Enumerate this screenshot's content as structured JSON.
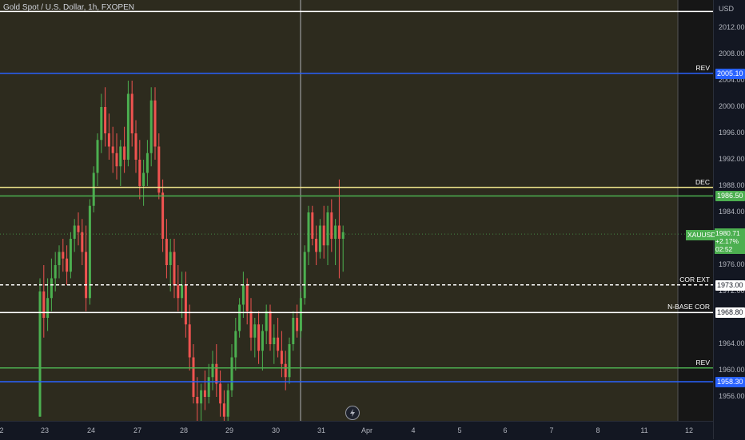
{
  "symbol_title": "Gold Spot / U.S. Dollar, 1h, FXOPEN",
  "price_axis": {
    "currency": "USD",
    "ticks": [
      "2012.00",
      "2008.00",
      "2004.00",
      "2000.00",
      "1996.00",
      "1992.00",
      "1988.00",
      "1984.00",
      "1976.00",
      "1972.00",
      "1964.00",
      "1960.00",
      "1956.00"
    ]
  },
  "time_axis": {
    "labels": [
      "2",
      "23",
      "24",
      "27",
      "28",
      "29",
      "30",
      "31",
      "Apr",
      "4",
      "5",
      "6",
      "7",
      "8",
      "11",
      "12"
    ]
  },
  "levels": [
    {
      "name": "top-line",
      "price": 2014.5,
      "color": "#ffffff",
      "tag": "",
      "box": ""
    },
    {
      "name": "rev-upper",
      "price": 2005.1,
      "color": "#2962ff",
      "tag": "REV",
      "box": "2005.10",
      "box_bg": "#2962ff",
      "box_fg": "#ffffff"
    },
    {
      "name": "dec-line",
      "price": 1987.8,
      "color": "#f0e68c",
      "tag": "DEC",
      "box": "",
      "box_bg": "",
      "box_fg": ""
    },
    {
      "name": "green-level",
      "price": 1986.5,
      "color": "#4caf50",
      "tag": "",
      "box": "1986.50",
      "box_bg": "#4caf50",
      "box_fg": "#ffffff"
    },
    {
      "name": "cor-ext",
      "price": 1973.0,
      "color": "#ffffff",
      "tag": "COR EXT",
      "box": "1973.00",
      "box_bg": "#ffffff",
      "box_fg": "#131722",
      "dashed": true
    },
    {
      "name": "n-base-cor",
      "price": 1968.8,
      "color": "#ffffff",
      "tag": "N-BASE COR",
      "box": "1968.80",
      "box_bg": "#ffffff",
      "box_fg": "#131722"
    },
    {
      "name": "rev-green",
      "price": 1960.4,
      "color": "#4caf50",
      "tag": "REV",
      "box": "",
      "box_bg": "",
      "box_fg": ""
    },
    {
      "name": "rev-lower",
      "price": 1958.3,
      "color": "#2962ff",
      "tag": "",
      "box": "1958.30",
      "box_bg": "#2962ff",
      "box_fg": "#ffffff"
    }
  ],
  "current": {
    "ticker": "XAUUSD",
    "price": "1980.71",
    "change": "+2.17%",
    "countdown": "02:52",
    "price_value": 1980.71
  },
  "colors": {
    "up": "#4caf50",
    "down": "#ef5350",
    "background": "#2d2b1e"
  },
  "candles": [
    [
      1953,
      1974,
      1953,
      1972
    ],
    [
      1972,
      1976,
      1965,
      1968
    ],
    [
      1968,
      1974,
      1966,
      1971
    ],
    [
      1971,
      1977,
      1969,
      1974
    ],
    [
      1974,
      1978,
      1972,
      1976
    ],
    [
      1976,
      1979,
      1974,
      1978
    ],
    [
      1978,
      1980,
      1975,
      1977
    ],
    [
      1977,
      1979,
      1973,
      1975
    ],
    [
      1975,
      1981,
      1974,
      1980
    ],
    [
      1980,
      1983,
      1978,
      1982
    ],
    [
      1982,
      1984,
      1979,
      1981
    ],
    [
      1981,
      1983,
      1976,
      1978
    ],
    [
      1978,
      1982,
      1969,
      1971
    ],
    [
      1971,
      1986,
      1970,
      1985
    ],
    [
      1985,
      1991,
      1984,
      1990
    ],
    [
      1990,
      1996,
      1988,
      1995
    ],
    [
      1995,
      2002,
      1993,
      2000
    ],
    [
      2000,
      2003,
      1994,
      1996
    ],
    [
      1996,
      1999,
      1992,
      1994
    ],
    [
      1994,
      1997,
      1990,
      1993
    ],
    [
      1993,
      1996,
      1989,
      1991
    ],
    [
      1991,
      1995,
      1988,
      1994
    ],
    [
      1994,
      1997,
      1990,
      1992
    ],
    [
      1992,
      2004,
      1991,
      2002
    ],
    [
      2002,
      2004,
      1994,
      1996
    ],
    [
      1996,
      1998,
      1990,
      1992
    ],
    [
      1992,
      1995,
      1986,
      1988
    ],
    [
      1988,
      1992,
      1985,
      1990
    ],
    [
      1990,
      1995,
      1988,
      1993
    ],
    [
      1993,
      2003,
      1991,
      2001
    ],
    [
      2001,
      2003,
      1992,
      1994
    ],
    [
      1994,
      1996,
      1986,
      1987
    ],
    [
      1987,
      1989,
      1978,
      1980
    ],
    [
      1980,
      1983,
      1974,
      1976
    ],
    [
      1976,
      1980,
      1972,
      1978
    ],
    [
      1978,
      1980,
      1971,
      1973
    ],
    [
      1973,
      1976,
      1969,
      1971
    ],
    [
      1971,
      1975,
      1968,
      1973
    ],
    [
      1973,
      1975,
      1965,
      1967
    ],
    [
      1967,
      1970,
      1960,
      1962
    ],
    [
      1962,
      1964,
      1955,
      1956
    ],
    [
      1956,
      1959,
      1952,
      1955
    ],
    [
      1955,
      1958,
      1951,
      1957
    ],
    [
      1957,
      1960,
      1954,
      1956
    ],
    [
      1956,
      1961,
      1955,
      1959
    ],
    [
      1959,
      1963,
      1957,
      1961
    ],
    [
      1961,
      1964,
      1956,
      1958
    ],
    [
      1958,
      1960,
      1953,
      1955
    ],
    [
      1955,
      1957,
      1950,
      1953
    ],
    [
      1953,
      1958,
      1952,
      1957
    ],
    [
      1957,
      1964,
      1956,
      1962
    ],
    [
      1962,
      1968,
      1960,
      1966
    ],
    [
      1966,
      1971,
      1965,
      1970
    ],
    [
      1970,
      1975,
      1968,
      1973
    ],
    [
      1973,
      1974,
      1967,
      1969
    ],
    [
      1969,
      1971,
      1963,
      1965
    ],
    [
      1965,
      1968,
      1962,
      1967
    ],
    [
      1967,
      1969,
      1961,
      1963
    ],
    [
      1963,
      1967,
      1960,
      1966
    ],
    [
      1966,
      1970,
      1964,
      1969
    ],
    [
      1969,
      1970,
      1963,
      1964
    ],
    [
      1964,
      1967,
      1961,
      1965
    ],
    [
      1965,
      1968,
      1962,
      1963
    ],
    [
      1963,
      1966,
      1959,
      1961
    ],
    [
      1961,
      1963,
      1957,
      1959
    ],
    [
      1959,
      1965,
      1958,
      1964
    ],
    [
      1964,
      1969,
      1963,
      1968
    ],
    [
      1968,
      1970,
      1965,
      1966
    ],
    [
      1966,
      1972,
      1965,
      1971
    ],
    [
      1971,
      1979,
      1970,
      1978
    ],
    [
      1978,
      1985,
      1976,
      1984
    ],
    [
      1984,
      1985,
      1979,
      1980
    ],
    [
      1980,
      1982,
      1976,
      1978
    ],
    [
      1978,
      1983,
      1977,
      1982
    ],
    [
      1982,
      1985,
      1977,
      1979
    ],
    [
      1979,
      1985,
      1976,
      1984
    ],
    [
      1984,
      1986,
      1978,
      1980
    ],
    [
      1980,
      1983,
      1976,
      1982
    ],
    [
      1982,
      1989,
      1974,
      1980
    ],
    [
      1980,
      1982,
      1975,
      1981
    ]
  ]
}
